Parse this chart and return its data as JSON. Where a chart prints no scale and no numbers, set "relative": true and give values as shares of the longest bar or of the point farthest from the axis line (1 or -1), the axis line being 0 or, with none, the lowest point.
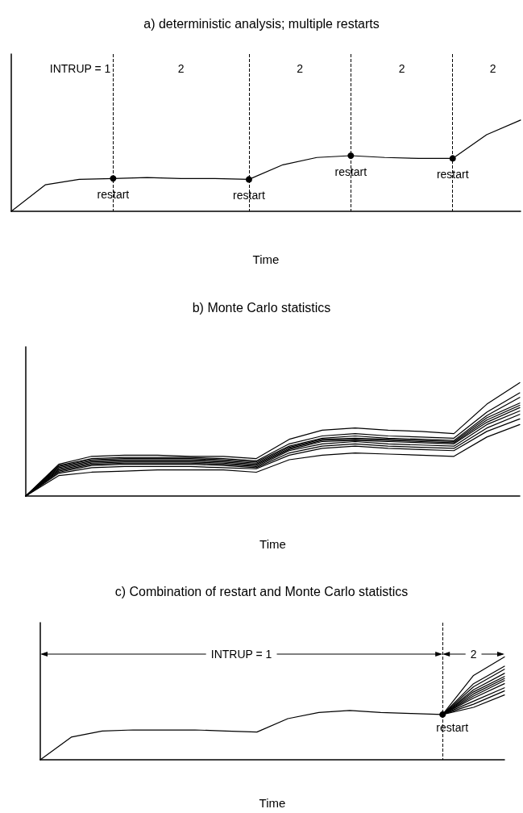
{
  "chart_data": [
    {
      "type": "line",
      "title": "a) deterministic analysis; multiple restarts",
      "xlabel": "Time",
      "relative": true,
      "grid": "x",
      "categories": [
        null,
        null,
        null,
        null,
        null,
        null,
        null,
        null,
        null,
        null,
        null,
        null,
        null,
        null,
        null,
        null
      ],
      "series": [
        {
          "color": "#000000",
          "values": [
            0,
            0.29,
            0.35,
            0.36,
            0.37,
            0.36,
            0.36,
            0.35,
            0.51,
            0.59,
            0.61,
            0.59,
            0.58,
            0.58,
            0.84,
            1
          ]
        }
      ],
      "annotations": [
        "INTRUP = 1",
        "2",
        "2",
        "2",
        "2",
        "restart",
        "restart",
        "restart",
        "restart"
      ]
    },
    {
      "type": "line",
      "title": "b) Monte Carlo statistics",
      "xlabel": "Time",
      "relative": true,
      "categories": [
        null,
        null,
        null,
        null,
        null,
        null,
        null,
        null,
        null,
        null,
        null,
        null,
        null,
        null,
        null,
        null
      ],
      "series": [
        {
          "color": "#000000",
          "values": [
            0,
            0.28,
            0.35,
            0.36,
            0.36,
            0.35,
            0.35,
            0.33,
            0.5,
            0.58,
            0.6,
            0.58,
            0.57,
            0.55,
            0.81,
            1
          ]
        },
        {
          "color": "#000000",
          "values": [
            0,
            0.27,
            0.33,
            0.34,
            0.34,
            0.34,
            0.33,
            0.31,
            0.46,
            0.53,
            0.55,
            0.53,
            0.52,
            0.51,
            0.74,
            0.91
          ]
        },
        {
          "color": "#000000",
          "values": [
            0,
            0.26,
            0.32,
            0.33,
            0.33,
            0.33,
            0.32,
            0.3,
            0.44,
            0.51,
            0.53,
            0.51,
            0.5,
            0.49,
            0.71,
            0.87
          ]
        },
        {
          "color": "#000000",
          "values": [
            0,
            0.25,
            0.31,
            0.32,
            0.32,
            0.32,
            0.31,
            0.29,
            0.43,
            0.5,
            0.51,
            0.5,
            0.49,
            0.48,
            0.69,
            0.82
          ]
        },
        {
          "color": "#000000",
          "values": [
            0,
            0.24,
            0.3,
            0.31,
            0.31,
            0.31,
            0.3,
            0.28,
            0.42,
            0.49,
            0.5,
            0.49,
            0.48,
            0.47,
            0.67,
            0.8
          ]
        },
        {
          "color": "#000000",
          "values": [
            0,
            0.23,
            0.29,
            0.3,
            0.3,
            0.3,
            0.29,
            0.27,
            0.41,
            0.48,
            0.49,
            0.48,
            0.47,
            0.46,
            0.65,
            0.78
          ]
        },
        {
          "color": "#000000",
          "values": [
            0,
            0.22,
            0.28,
            0.29,
            0.29,
            0.29,
            0.28,
            0.26,
            0.4,
            0.46,
            0.48,
            0.46,
            0.45,
            0.44,
            0.63,
            0.75
          ]
        },
        {
          "color": "#000000",
          "values": [
            0,
            0.21,
            0.27,
            0.28,
            0.28,
            0.28,
            0.27,
            0.25,
            0.38,
            0.44,
            0.46,
            0.44,
            0.43,
            0.42,
            0.6,
            0.72
          ]
        },
        {
          "color": "#000000",
          "values": [
            0,
            0.2,
            0.25,
            0.26,
            0.26,
            0.26,
            0.25,
            0.24,
            0.36,
            0.42,
            0.44,
            0.42,
            0.41,
            0.4,
            0.57,
            0.68
          ]
        },
        {
          "color": "#000000",
          "values": [
            0,
            0.18,
            0.21,
            0.22,
            0.23,
            0.23,
            0.23,
            0.21,
            0.32,
            0.36,
            0.38,
            0.37,
            0.36,
            0.35,
            0.52,
            0.63
          ]
        }
      ]
    },
    {
      "type": "line",
      "title": "c) Combination of restart and Monte Carlo statistics",
      "xlabel": "Time",
      "relative": true,
      "grid": "x",
      "categories": [
        null,
        null,
        null,
        null,
        null,
        null,
        null,
        null,
        null,
        null,
        null,
        null,
        null,
        null,
        null,
        null
      ],
      "series": [
        {
          "color": "#000000",
          "values": [
            0,
            0.22,
            0.28,
            0.29,
            0.29,
            0.29,
            0.28,
            0.27,
            0.4,
            0.46,
            0.48,
            0.46,
            0.45,
            0.44,
            null,
            null
          ]
        },
        {
          "color": "#000000",
          "values": [
            null,
            null,
            null,
            null,
            null,
            null,
            null,
            null,
            null,
            null,
            null,
            null,
            null,
            0.44,
            0.82,
            1
          ]
        },
        {
          "color": "#000000",
          "values": [
            null,
            null,
            null,
            null,
            null,
            null,
            null,
            null,
            null,
            null,
            null,
            null,
            null,
            0.44,
            0.74,
            0.91
          ]
        },
        {
          "color": "#000000",
          "values": [
            null,
            null,
            null,
            null,
            null,
            null,
            null,
            null,
            null,
            null,
            null,
            null,
            null,
            0.44,
            0.71,
            0.88
          ]
        },
        {
          "color": "#000000",
          "values": [
            null,
            null,
            null,
            null,
            null,
            null,
            null,
            null,
            null,
            null,
            null,
            null,
            null,
            0.44,
            0.68,
            0.84
          ]
        },
        {
          "color": "#000000",
          "values": [
            null,
            null,
            null,
            null,
            null,
            null,
            null,
            null,
            null,
            null,
            null,
            null,
            null,
            0.44,
            0.66,
            0.81
          ]
        },
        {
          "color": "#000000",
          "values": [
            null,
            null,
            null,
            null,
            null,
            null,
            null,
            null,
            null,
            null,
            null,
            null,
            null,
            0.44,
            0.64,
            0.79
          ]
        },
        {
          "color": "#000000",
          "values": [
            null,
            null,
            null,
            null,
            null,
            null,
            null,
            null,
            null,
            null,
            null,
            null,
            null,
            0.44,
            0.62,
            0.77
          ]
        },
        {
          "color": "#000000",
          "values": [
            null,
            null,
            null,
            null,
            null,
            null,
            null,
            null,
            null,
            null,
            null,
            null,
            null,
            0.44,
            0.6,
            0.74
          ]
        },
        {
          "color": "#000000",
          "values": [
            null,
            null,
            null,
            null,
            null,
            null,
            null,
            null,
            null,
            null,
            null,
            null,
            null,
            0.44,
            0.57,
            0.7
          ]
        },
        {
          "color": "#000000",
          "values": [
            null,
            null,
            null,
            null,
            null,
            null,
            null,
            null,
            null,
            null,
            null,
            null,
            null,
            0.44,
            0.54,
            0.67
          ]
        },
        {
          "color": "#000000",
          "values": [
            null,
            null,
            null,
            null,
            null,
            null,
            null,
            null,
            null,
            null,
            null,
            null,
            null,
            0.44,
            0.51,
            0.63
          ]
        }
      ],
      "annotations": [
        "INTRUP = 1",
        "2",
        "restart"
      ]
    }
  ]
}
